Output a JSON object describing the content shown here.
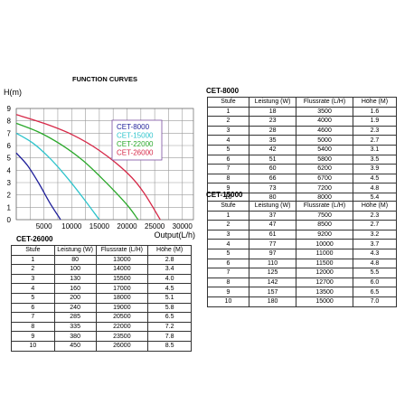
{
  "chart_data": [
    {
      "type": "line",
      "title": "FUNCTION CURVES",
      "ylabel": "H(m)",
      "xlabel": "Output(L/h)",
      "xlim": [
        0,
        32000
      ],
      "ylim": [
        0,
        9
      ],
      "x_ticks": [
        "5000",
        "10000",
        "15000",
        "20000",
        "25000",
        "30000"
      ],
      "y_ticks": [
        "0",
        "1",
        "2",
        "3",
        "4",
        "5",
        "6",
        "7",
        "8",
        "9"
      ],
      "grid": true,
      "legend": "center",
      "series": [
        {
          "name": "CET-8000",
          "color": "#1f1f9a",
          "x": [
            0,
            2000,
            4000,
            6000,
            8000
          ],
          "y": [
            5.4,
            4.4,
            3.0,
            1.4,
            0
          ]
        },
        {
          "name": "CET-15000",
          "color": "#2ec4cc",
          "x": [
            0,
            3000,
            6000,
            9000,
            12000,
            15000
          ],
          "y": [
            7.0,
            6.2,
            5.0,
            3.5,
            1.8,
            0
          ]
        },
        {
          "name": "CET-22000",
          "color": "#2aa82a",
          "x": [
            0,
            4000,
            8000,
            12000,
            16000,
            20000,
            22000
          ],
          "y": [
            7.8,
            7.1,
            6.1,
            4.8,
            3.1,
            1.2,
            0
          ]
        },
        {
          "name": "CET-26000",
          "color": "#d62847",
          "x": [
            0,
            5000,
            10000,
            15000,
            20000,
            23000,
            26000
          ],
          "y": [
            8.5,
            7.8,
            6.9,
            5.6,
            3.8,
            2.2,
            0
          ]
        }
      ]
    },
    {
      "type": "table",
      "title": "CET-26000",
      "columns": [
        "Stufe",
        "Leistung (W)",
        "Flussrate (L/H)",
        "Höhe (M)"
      ],
      "rows": [
        [
          "1",
          "80",
          "13000",
          "2.8"
        ],
        [
          "2",
          "100",
          "14000",
          "3.4"
        ],
        [
          "3",
          "130",
          "15500",
          "4.0"
        ],
        [
          "4",
          "160",
          "17000",
          "4.5"
        ],
        [
          "5",
          "200",
          "18000",
          "5.1"
        ],
        [
          "6",
          "240",
          "19000",
          "5.8"
        ],
        [
          "7",
          "285",
          "20500",
          "6.5"
        ],
        [
          "8",
          "335",
          "22000",
          "7.2"
        ],
        [
          "9",
          "380",
          "23500",
          "7.8"
        ],
        [
          "10",
          "450",
          "26000",
          "8.5"
        ]
      ]
    },
    {
      "type": "table",
      "title": "CET-8000",
      "columns": [
        "Stufe",
        "Leistung (W)",
        "Flussrate (L/H)",
        "Höhe (M)"
      ],
      "rows": [
        [
          "1",
          "18",
          "3500",
          "1.6"
        ],
        [
          "2",
          "23",
          "4000",
          "1.9"
        ],
        [
          "3",
          "28",
          "4600",
          "2.3"
        ],
        [
          "4",
          "35",
          "5000",
          "2.7"
        ],
        [
          "5",
          "42",
          "5400",
          "3.1"
        ],
        [
          "6",
          "51",
          "5800",
          "3.5"
        ],
        [
          "7",
          "60",
          "6200",
          "3.9"
        ],
        [
          "8",
          "66",
          "6700",
          "4.5"
        ],
        [
          "9",
          "73",
          "7200",
          "4.8"
        ],
        [
          "10",
          "80",
          "8000",
          "5.4"
        ]
      ]
    },
    {
      "type": "table",
      "title": "CET-15000",
      "columns": [
        "Stufe",
        "Leistung (W)",
        "Flussrate (L/H)",
        "Höhe (M)"
      ],
      "rows": [
        [
          "1",
          "37",
          "7500",
          "2.3"
        ],
        [
          "2",
          "47",
          "8500",
          "2.7"
        ],
        [
          "3",
          "61",
          "9200",
          "3.2"
        ],
        [
          "4",
          "77",
          "10000",
          "3.7"
        ],
        [
          "5",
          "97",
          "11000",
          "4.3"
        ],
        [
          "6",
          "110",
          "11500",
          "4.8"
        ],
        [
          "7",
          "125",
          "12000",
          "5.5"
        ],
        [
          "8",
          "142",
          "12700",
          "6.0"
        ],
        [
          "9",
          "157",
          "13500",
          "6.5"
        ],
        [
          "10",
          "180",
          "15000",
          "7.0"
        ]
      ]
    }
  ]
}
